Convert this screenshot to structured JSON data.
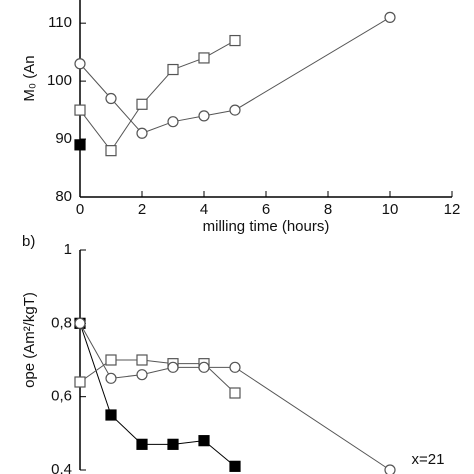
{
  "chart_data": [
    {
      "type": "line",
      "ylabel": "M₀ (An",
      "xlabel": "milling time (hours)",
      "x": [
        0,
        1,
        2,
        3,
        4,
        5,
        10
      ],
      "series": [
        {
          "marker": "square",
          "filled": true,
          "color": "#000000",
          "values": [
            89,
            null,
            null,
            null,
            null,
            null,
            null
          ]
        },
        {
          "marker": "square",
          "filled": false,
          "color": "#555555",
          "values": [
            95,
            88,
            96,
            102,
            104,
            107,
            null
          ]
        },
        {
          "marker": "circle",
          "filled": false,
          "color": "#555555",
          "values": [
            103,
            97,
            91,
            93,
            94,
            95,
            111
          ]
        }
      ],
      "xlim": [
        0,
        12
      ],
      "xticks": [
        0,
        2,
        4,
        6,
        8,
        10,
        12
      ],
      "ylim": [
        80,
        114
      ],
      "yticks": [
        80,
        90,
        100,
        110
      ]
    },
    {
      "type": "line",
      "panel": "b)",
      "ylabel": "ope (Am²/kgT)",
      "annotation": "x=21",
      "x": [
        0,
        1,
        2,
        3,
        4,
        5,
        10
      ],
      "series": [
        {
          "marker": "square",
          "filled": true,
          "color": "#000000",
          "values": [
            0.8,
            0.55,
            0.47,
            0.47,
            0.48,
            0.41,
            null
          ]
        },
        {
          "marker": "square",
          "filled": false,
          "color": "#555555",
          "values": [
            0.64,
            0.7,
            0.7,
            0.69,
            0.69,
            0.61,
            null
          ]
        },
        {
          "marker": "circle",
          "filled": false,
          "color": "#555555",
          "values": [
            0.8,
            0.65,
            0.66,
            0.68,
            0.68,
            0.68,
            0.4
          ]
        }
      ],
      "xlim": [
        0,
        12
      ],
      "ylim": [
        0.4,
        1
      ],
      "yticks": [
        {
          "value": 0.4,
          "label": "0,4"
        },
        {
          "value": 0.6,
          "label": "0,6"
        },
        {
          "value": 0.8,
          "label": "0,8"
        },
        1
      ]
    }
  ]
}
